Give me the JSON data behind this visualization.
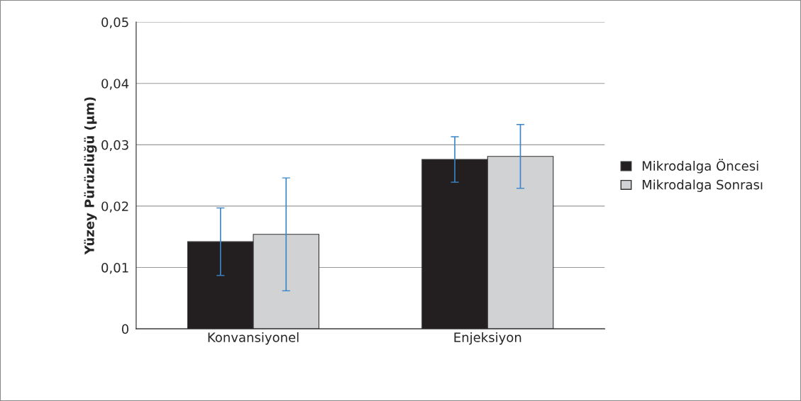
{
  "chart_data": {
    "type": "bar",
    "ylabel": "Yüzey Pürüzlüğü (µm)",
    "categories": [
      "Konvansiyonel",
      "Enjeksiyon"
    ],
    "series": [
      {
        "name": "Mikrodalga Öncesi",
        "color": "#231f20",
        "values": [
          0.0142,
          0.0276
        ],
        "errors": [
          0.0055,
          0.0037
        ]
      },
      {
        "name": "Mikrodalga Sonrası",
        "color": "#d1d2d4",
        "values": [
          0.0154,
          0.0281
        ],
        "errors": [
          0.0092,
          0.0052
        ]
      }
    ],
    "ylim": [
      0,
      0.05
    ],
    "yticks": [
      {
        "value": 0,
        "label": "0"
      },
      {
        "value": 0.01,
        "label": "0,01"
      },
      {
        "value": 0.02,
        "label": "0,02"
      },
      {
        "value": 0.03,
        "label": "0,03"
      },
      {
        "value": 0.04,
        "label": "0,04"
      },
      {
        "value": 0.05,
        "label": "0,05"
      }
    ],
    "grid": "y",
    "legend": "right"
  }
}
